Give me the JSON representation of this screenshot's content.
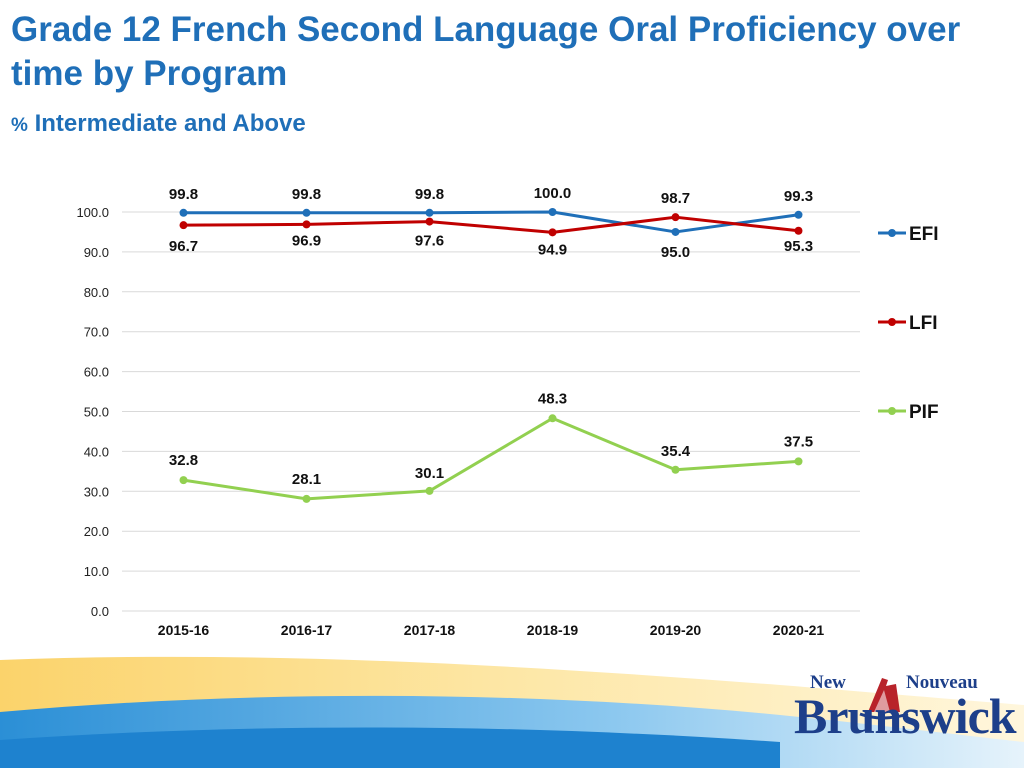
{
  "header": {
    "title": "Grade 12 French Second Language Oral Proficiency over time by Program",
    "subtitle_prefix": "%",
    "subtitle": "Intermediate and Above"
  },
  "chart_data": {
    "type": "line",
    "categories": [
      "2015-16",
      "2016-17",
      "2017-18",
      "2018-19",
      "2019-20",
      "2020-21"
    ],
    "ylim": [
      0,
      100
    ],
    "yticks": [
      "0.0",
      "10.0",
      "20.0",
      "30.0",
      "40.0",
      "50.0",
      "60.0",
      "70.0",
      "80.0",
      "90.0",
      "100.0"
    ],
    "grid": true,
    "legend_position": "right",
    "series": [
      {
        "name": "EFI",
        "color": "#1f6fb8",
        "values": [
          99.8,
          99.8,
          99.8,
          100.0,
          95.0,
          99.3
        ],
        "labels": [
          "99.8",
          "99.8",
          "99.8",
          "100.0",
          "95.0",
          "99.3"
        ]
      },
      {
        "name": "LFI",
        "color": "#c00000",
        "values": [
          96.7,
          96.9,
          97.6,
          94.9,
          98.7,
          95.3
        ],
        "labels": [
          "96.7",
          "96.9",
          "97.6",
          "94.9",
          "98.7",
          "95.3"
        ]
      },
      {
        "name": "PIF",
        "color": "#92d050",
        "values": [
          32.8,
          28.1,
          30.1,
          48.3,
          35.4,
          37.5
        ],
        "labels": [
          "32.8",
          "28.1",
          "30.1",
          "48.3",
          "35.4",
          "37.5"
        ]
      }
    ]
  },
  "logo": {
    "line1_left": "New",
    "line1_right": "Nouveau",
    "line2": "Brunswick"
  }
}
